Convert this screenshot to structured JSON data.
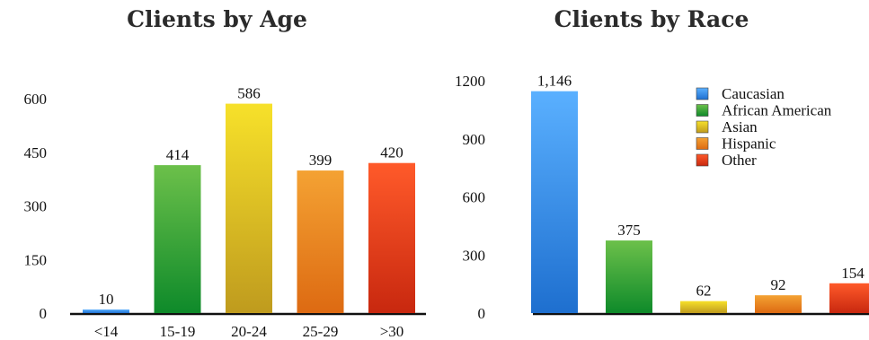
{
  "chart_data": [
    {
      "type": "bar",
      "title": "Clients by Age",
      "categories": [
        "<14",
        "15-19",
        "20-24",
        "25-29",
        ">30"
      ],
      "values": [
        10,
        414,
        586,
        399,
        420
      ],
      "value_labels": [
        "10",
        "414",
        "586",
        "399",
        "420"
      ],
      "colors": [
        [
          "#5ab0ff",
          "#1e6fcf"
        ],
        [
          "#6cc04a",
          "#0e8a2a"
        ],
        [
          "#f7e12a",
          "#bf9b1e"
        ],
        [
          "#f4a233",
          "#dd6a12"
        ],
        [
          "#ff5a2a",
          "#c8280f"
        ]
      ],
      "yticks": [
        0,
        150,
        300,
        450,
        600
      ],
      "ylim": [
        0,
        600
      ],
      "grid": false,
      "legend": "none",
      "xlabel": "",
      "ylabel": ""
    },
    {
      "type": "bar",
      "title": "Clients by Race",
      "categories": [
        "Caucasian",
        "African American",
        "Asian",
        "Hispanic",
        "Other"
      ],
      "values": [
        1146,
        375,
        62,
        92,
        154
      ],
      "value_labels": [
        "1,146",
        "375",
        "62",
        "92",
        "154"
      ],
      "colors": [
        [
          "#5ab0ff",
          "#1e6fcf"
        ],
        [
          "#6cc04a",
          "#0e8a2a"
        ],
        [
          "#f7e12a",
          "#bf9b1e"
        ],
        [
          "#f4a233",
          "#dd6a12"
        ],
        [
          "#ff5a2a",
          "#c8280f"
        ]
      ],
      "yticks": [
        0,
        300,
        600,
        900,
        1200
      ],
      "ylim": [
        0,
        1200
      ],
      "grid": false,
      "legend": "top-right",
      "xlabel": "",
      "ylabel": ""
    }
  ]
}
